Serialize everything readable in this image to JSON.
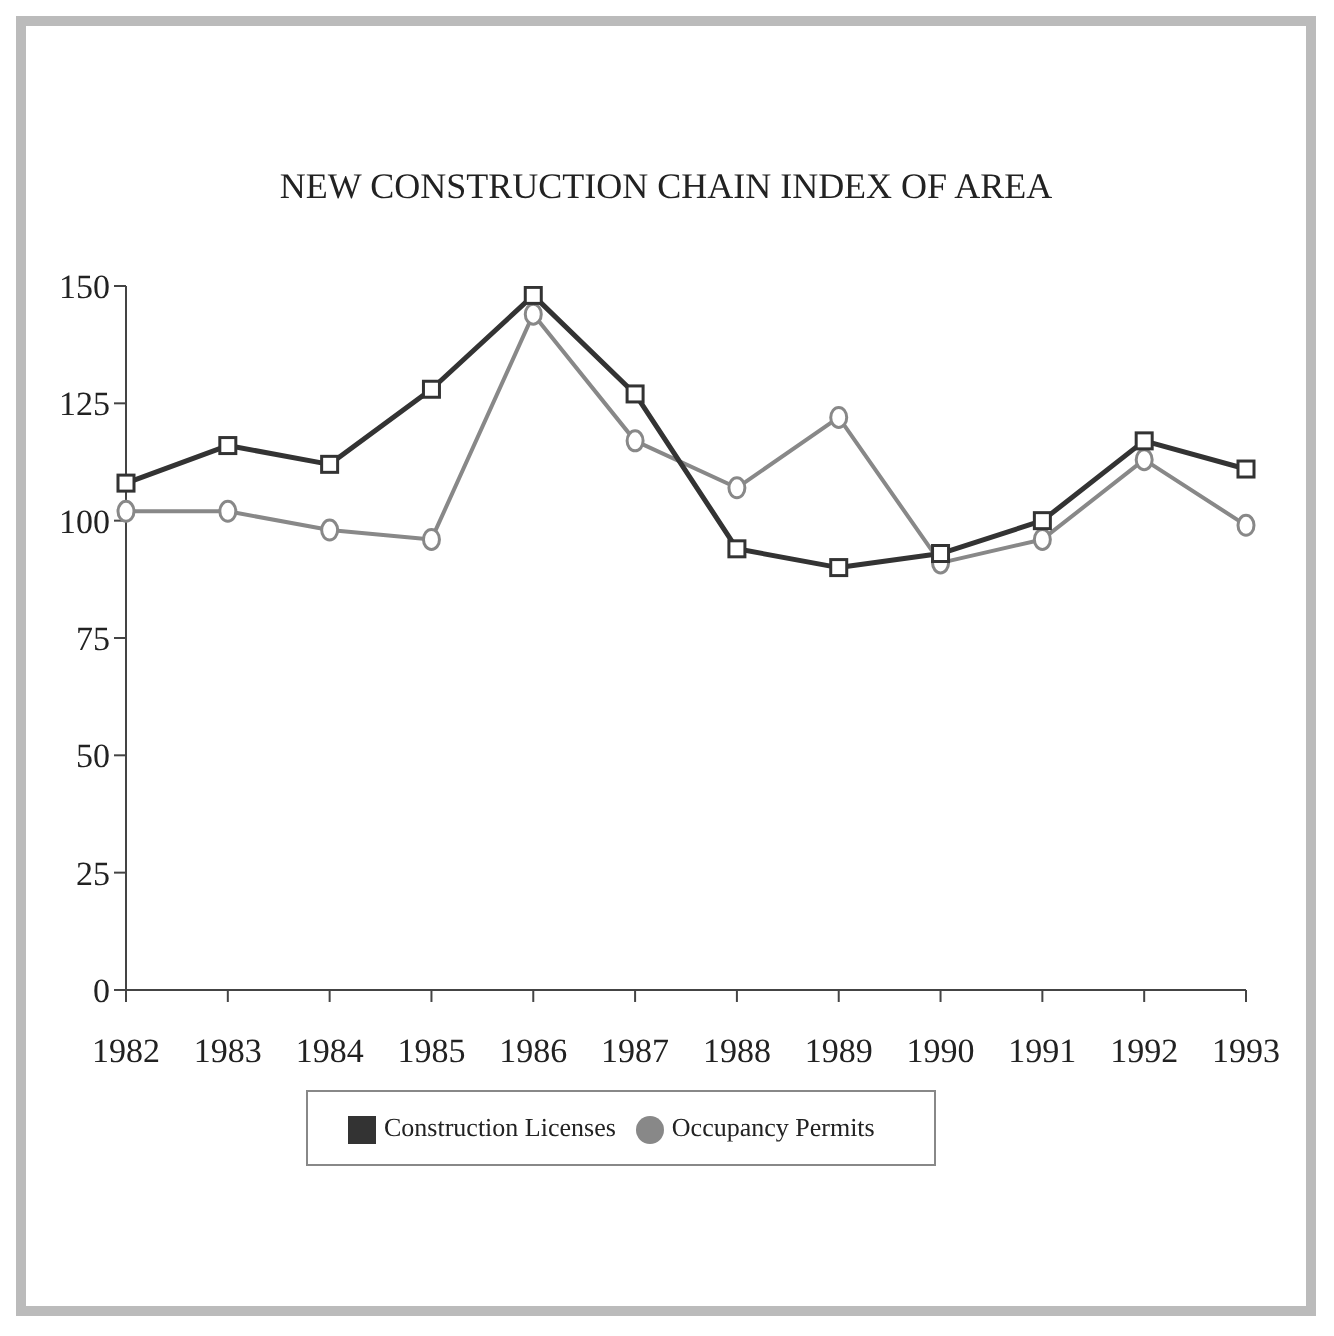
{
  "chart_data": {
    "type": "line",
    "title": "NEW CONSTRUCTION CHAIN INDEX OF AREA",
    "categories": [
      "1982",
      "1983",
      "1984",
      "1985",
      "1986",
      "1987",
      "1988",
      "1989",
      "1990",
      "1991",
      "1992",
      "1993"
    ],
    "series": [
      {
        "name": "Construction Licenses",
        "color": "#333333",
        "marker": "square",
        "values": [
          108,
          116,
          112,
          128,
          148,
          127,
          94,
          90,
          93,
          100,
          117,
          111
        ]
      },
      {
        "name": "Occupancy Permits",
        "color": "#888888",
        "marker": "circle",
        "values": [
          102,
          102,
          98,
          96,
          144,
          117,
          107,
          122,
          91,
          96,
          113,
          99
        ]
      }
    ],
    "ylim": [
      0,
      150
    ],
    "yticks": [
      0,
      25,
      50,
      75,
      100,
      125,
      150
    ],
    "grid": false,
    "legend": "bottom"
  }
}
